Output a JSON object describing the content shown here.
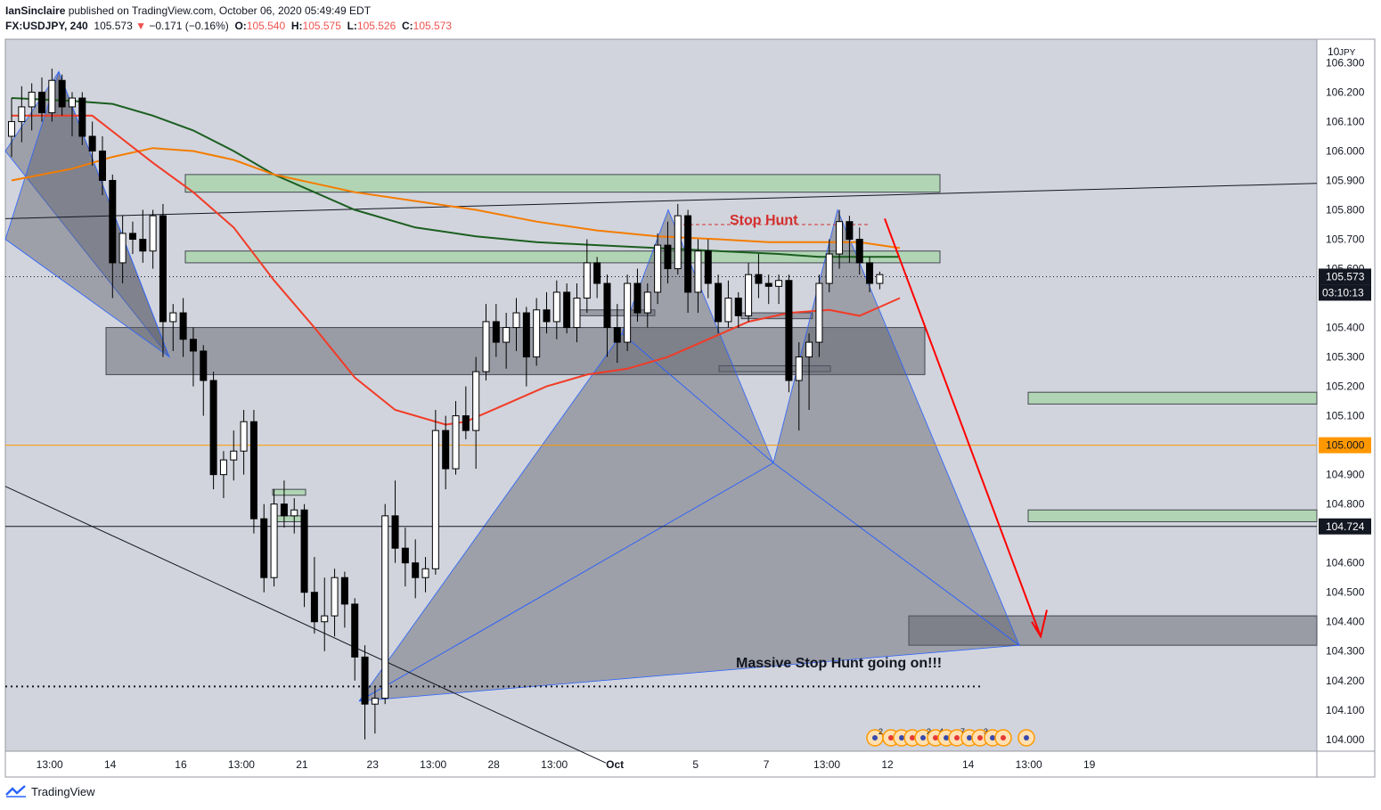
{
  "header": {
    "author": "IanSinclaire",
    "published_text": " published on TradingView.com, October 06, 2020 05:49:49 EDT",
    "symbol": "FX:USDJPY, 240",
    "last": "105.573",
    "change_arrow": "▼",
    "change": "−0.171 (−0.16%)",
    "o_label": "O:",
    "o_value": "105.540",
    "h_label": "H:",
    "h_value": "105.575",
    "l_label": "L:",
    "l_value": "105.526",
    "c_label": "C:",
    "c_value": "105.573"
  },
  "footer": {
    "brand": "TradingView"
  },
  "colors": {
    "plot_bg": "#d1d4dc",
    "up": "#ffffff",
    "down": "#000000",
    "ma_fast": "#f23b27",
    "ma_mid": "#f57c00",
    "ma_slow": "#1b5e20",
    "zone_green": "#a5d6a7",
    "zone_gray": "#868993",
    "pattern": "#5d606b",
    "arrow": "#ff0000",
    "label_red": "#d32f2f",
    "price_tag_orange": "#ff9800"
  },
  "chart_data": {
    "type": "candlestick",
    "title": "FX:USDJPY, 240",
    "currency_label": "JPY",
    "ylim": [
      103.96,
      106.38
    ],
    "y_ticks": [
      "106.300",
      "106.200",
      "106.100",
      "106.000",
      "105.900",
      "105.800",
      "105.700",
      "105.600",
      "105.400",
      "105.300",
      "105.200",
      "105.100",
      "104.900",
      "104.800",
      "104.600",
      "104.500",
      "104.400",
      "104.300",
      "104.200",
      "104.100",
      "104.000"
    ],
    "x_ticks": [
      {
        "i": 2,
        "label": "13:00"
      },
      {
        "i": 8,
        "label": "14"
      },
      {
        "i": 15,
        "label": "16"
      },
      {
        "i": 21,
        "label": "13:00"
      },
      {
        "i": 27,
        "label": "21"
      },
      {
        "i": 34,
        "label": "23"
      },
      {
        "i": 40,
        "label": "13:00"
      },
      {
        "i": 46,
        "label": "28"
      },
      {
        "i": 52,
        "label": "13:00"
      },
      {
        "i": 58,
        "label": "Oct"
      },
      {
        "i": 66,
        "label": "5"
      },
      {
        "i": 73,
        "label": "7"
      },
      {
        "i": 79,
        "label": "13:00"
      },
      {
        "i": 85,
        "label": "12"
      },
      {
        "i": 93,
        "label": "14"
      },
      {
        "i": 99,
        "label": "13:00"
      },
      {
        "i": 105,
        "label": "19"
      }
    ],
    "price_tags": [
      {
        "value": 105.573,
        "label": "105.573",
        "sub": "03:10:13",
        "style": "black"
      },
      {
        "value": 105.0,
        "label": "105.000",
        "style": "orange"
      },
      {
        "value": 104.724,
        "label": "104.724",
        "style": "black"
      }
    ],
    "ohlc": [
      [
        106.05,
        106.18,
        105.98,
        106.1
      ],
      [
        106.1,
        106.22,
        106.03,
        106.15
      ],
      [
        106.15,
        106.23,
        106.07,
        106.2
      ],
      [
        106.2,
        106.25,
        106.1,
        106.13
      ],
      [
        106.13,
        106.28,
        106.1,
        106.24
      ],
      [
        106.24,
        106.26,
        106.12,
        106.15
      ],
      [
        106.15,
        106.2,
        106.05,
        106.18
      ],
      [
        106.18,
        106.2,
        106.02,
        106.05
      ],
      [
        106.05,
        106.1,
        105.95,
        106.0
      ],
      [
        106.0,
        106.05,
        105.85,
        105.9
      ],
      [
        105.9,
        105.92,
        105.5,
        105.62
      ],
      [
        105.62,
        105.78,
        105.55,
        105.72
      ],
      [
        105.72,
        105.76,
        105.65,
        105.7
      ],
      [
        105.7,
        105.8,
        105.62,
        105.66
      ],
      [
        105.66,
        105.8,
        105.6,
        105.78
      ],
      [
        105.78,
        105.82,
        105.3,
        105.42
      ],
      [
        105.42,
        105.48,
        105.32,
        105.45
      ],
      [
        105.45,
        105.5,
        105.3,
        105.36
      ],
      [
        105.36,
        105.4,
        105.2,
        105.32
      ],
      [
        105.32,
        105.34,
        105.1,
        105.22
      ],
      [
        105.22,
        105.25,
        104.85,
        104.9
      ],
      [
        104.9,
        104.98,
        104.82,
        104.95
      ],
      [
        104.95,
        105.05,
        104.88,
        104.98
      ],
      [
        104.98,
        105.12,
        104.9,
        105.08
      ],
      [
        105.08,
        105.12,
        104.7,
        104.75
      ],
      [
        104.75,
        104.8,
        104.5,
        104.55
      ],
      [
        104.55,
        104.85,
        104.52,
        104.8
      ],
      [
        104.8,
        104.88,
        104.72,
        104.76
      ],
      [
        104.76,
        104.82,
        104.7,
        104.78
      ],
      [
        104.78,
        104.8,
        104.45,
        104.5
      ],
      [
        104.5,
        104.62,
        104.36,
        104.4
      ],
      [
        104.4,
        104.55,
        104.3,
        104.42
      ],
      [
        104.42,
        104.58,
        104.35,
        104.55
      ],
      [
        104.55,
        104.57,
        104.38,
        104.46
      ],
      [
        104.46,
        104.48,
        104.2,
        104.28
      ],
      [
        104.28,
        104.32,
        104.0,
        104.12
      ],
      [
        104.12,
        104.18,
        104.02,
        104.14
      ],
      [
        104.14,
        104.8,
        104.12,
        104.76
      ],
      [
        104.76,
        104.88,
        104.6,
        104.65
      ],
      [
        104.65,
        104.72,
        104.52,
        104.6
      ],
      [
        104.6,
        104.68,
        104.48,
        104.55
      ],
      [
        104.55,
        104.62,
        104.5,
        104.58
      ],
      [
        104.58,
        105.12,
        104.56,
        105.05
      ],
      [
        105.05,
        105.1,
        104.85,
        104.92
      ],
      [
        104.92,
        105.15,
        104.9,
        105.1
      ],
      [
        105.1,
        105.2,
        105.02,
        105.05
      ],
      [
        105.05,
        105.3,
        104.92,
        105.25
      ],
      [
        105.25,
        105.48,
        105.22,
        105.42
      ],
      [
        105.42,
        105.48,
        105.3,
        105.35
      ],
      [
        105.35,
        105.45,
        105.26,
        105.4
      ],
      [
        105.4,
        105.5,
        105.32,
        105.45
      ],
      [
        105.45,
        105.47,
        105.2,
        105.3
      ],
      [
        105.3,
        105.5,
        105.27,
        105.46
      ],
      [
        105.46,
        105.52,
        105.38,
        105.42
      ],
      [
        105.42,
        105.56,
        105.36,
        105.52
      ],
      [
        105.52,
        105.55,
        105.38,
        105.4
      ],
      [
        105.4,
        105.55,
        105.35,
        105.5
      ],
      [
        105.5,
        105.7,
        105.45,
        105.62
      ],
      [
        105.62,
        105.64,
        105.5,
        105.55
      ],
      [
        105.55,
        105.58,
        105.3,
        105.4
      ],
      [
        105.4,
        105.48,
        105.28,
        105.35
      ],
      [
        105.35,
        105.58,
        105.32,
        105.55
      ],
      [
        105.55,
        105.6,
        105.42,
        105.45
      ],
      [
        105.45,
        105.55,
        105.4,
        105.52
      ],
      [
        105.52,
        105.72,
        105.48,
        105.68
      ],
      [
        105.68,
        105.76,
        105.55,
        105.6
      ],
      [
        105.6,
        105.82,
        105.58,
        105.78
      ],
      [
        105.78,
        105.8,
        105.45,
        105.52
      ],
      [
        105.52,
        105.7,
        105.45,
        105.66
      ],
      [
        105.66,
        105.7,
        105.5,
        105.55
      ],
      [
        105.55,
        105.58,
        105.38,
        105.42
      ],
      [
        105.42,
        105.56,
        105.4,
        105.5
      ],
      [
        105.5,
        105.52,
        105.4,
        105.44
      ],
      [
        105.44,
        105.62,
        105.42,
        105.58
      ],
      [
        105.58,
        105.65,
        105.5,
        105.55
      ],
      [
        105.55,
        105.58,
        105.48,
        105.54
      ],
      [
        105.54,
        105.58,
        105.48,
        105.56
      ],
      [
        105.56,
        105.58,
        105.18,
        105.22
      ],
      [
        105.22,
        105.35,
        105.05,
        105.3
      ],
      [
        105.3,
        105.38,
        105.12,
        105.35
      ],
      [
        105.35,
        105.58,
        105.3,
        105.55
      ],
      [
        105.55,
        105.7,
        105.52,
        105.65
      ],
      [
        105.65,
        105.8,
        105.6,
        105.76
      ],
      [
        105.76,
        105.78,
        105.62,
        105.7
      ],
      [
        105.7,
        105.74,
        105.58,
        105.62
      ],
      [
        105.62,
        105.64,
        105.52,
        105.55
      ],
      [
        105.55,
        105.59,
        105.53,
        105.58
      ]
    ],
    "ma_fast": [
      [
        0,
        106.12
      ],
      [
        8,
        106.12
      ],
      [
        14,
        105.96
      ],
      [
        18,
        105.86
      ],
      [
        22,
        105.74
      ],
      [
        26,
        105.56
      ],
      [
        30,
        105.4
      ],
      [
        34,
        105.23
      ],
      [
        38,
        105.12
      ],
      [
        43,
        105.07
      ],
      [
        45,
        105.08
      ],
      [
        49,
        105.14
      ],
      [
        53,
        105.2
      ],
      [
        57,
        105.24
      ],
      [
        61,
        105.26
      ],
      [
        65,
        105.3
      ],
      [
        69,
        105.36
      ],
      [
        73,
        105.42
      ],
      [
        77,
        105.45
      ],
      [
        81,
        105.46
      ],
      [
        84,
        105.44
      ],
      [
        86,
        105.47
      ],
      [
        88,
        105.5
      ]
    ],
    "ma_mid": [
      [
        0,
        105.9
      ],
      [
        6,
        105.94
      ],
      [
        10,
        105.98
      ],
      [
        14,
        106.01
      ],
      [
        18,
        106.0
      ],
      [
        22,
        105.97
      ],
      [
        26,
        105.92
      ],
      [
        30,
        105.89
      ],
      [
        34,
        105.86
      ],
      [
        40,
        105.83
      ],
      [
        46,
        105.8
      ],
      [
        52,
        105.76
      ],
      [
        58,
        105.73
      ],
      [
        64,
        105.71
      ],
      [
        70,
        105.7
      ],
      [
        75,
        105.69
      ],
      [
        80,
        105.69
      ],
      [
        84,
        105.69
      ],
      [
        88,
        105.67
      ]
    ],
    "ma_slow": [
      [
        0,
        106.18
      ],
      [
        6,
        106.17
      ],
      [
        10,
        106.16
      ],
      [
        14,
        106.12
      ],
      [
        18,
        106.07
      ],
      [
        22,
        106.0
      ],
      [
        26,
        105.92
      ],
      [
        30,
        105.86
      ],
      [
        34,
        105.8
      ],
      [
        40,
        105.74
      ],
      [
        46,
        105.71
      ],
      [
        52,
        105.69
      ],
      [
        58,
        105.68
      ],
      [
        64,
        105.67
      ],
      [
        70,
        105.66
      ],
      [
        76,
        105.65
      ],
      [
        80,
        105.64
      ],
      [
        84,
        105.64
      ],
      [
        88,
        105.64
      ]
    ],
    "annotations": {
      "stop_hunt": "Stop Hunt",
      "massive": "Massive Stop Hunt going on!!!"
    }
  }
}
